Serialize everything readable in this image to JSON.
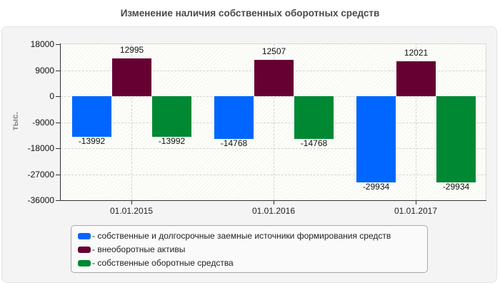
{
  "chart_data": {
    "type": "bar",
    "title": "Изменение наличия собственных оборотных средств",
    "xlabel": "",
    "ylabel": "тыс.",
    "ylim": [
      -36000,
      18000
    ],
    "yticks": [
      18000,
      9000,
      0,
      -9000,
      -18000,
      -27000,
      -36000
    ],
    "ytick_labels": [
      "18000",
      "9000",
      "0",
      "-9000",
      "-18000",
      "-27000",
      "-36000"
    ],
    "grid": true,
    "legend_position": "bottom",
    "categories": [
      "01.01.2015",
      "01.01.2016",
      "01.01.2017"
    ],
    "series": [
      {
        "name": "- собственные и долгосрочные заемные источники формирования средств",
        "color": "#0066ff",
        "values": [
          -13992,
          -14768,
          -29934
        ],
        "labels": [
          "-13992",
          "-14768",
          "-29934"
        ]
      },
      {
        "name": "- внеоборотные активы",
        "color": "#660033",
        "values": [
          12995,
          12507,
          12021
        ],
        "labels": [
          "12995",
          "12507",
          "12021"
        ]
      },
      {
        "name": "- собственные оборотные средства",
        "color": "#008833",
        "values": [
          -13992,
          -14768,
          -29934
        ],
        "labels": [
          "-13992",
          "-14768",
          "-29934"
        ]
      }
    ]
  }
}
